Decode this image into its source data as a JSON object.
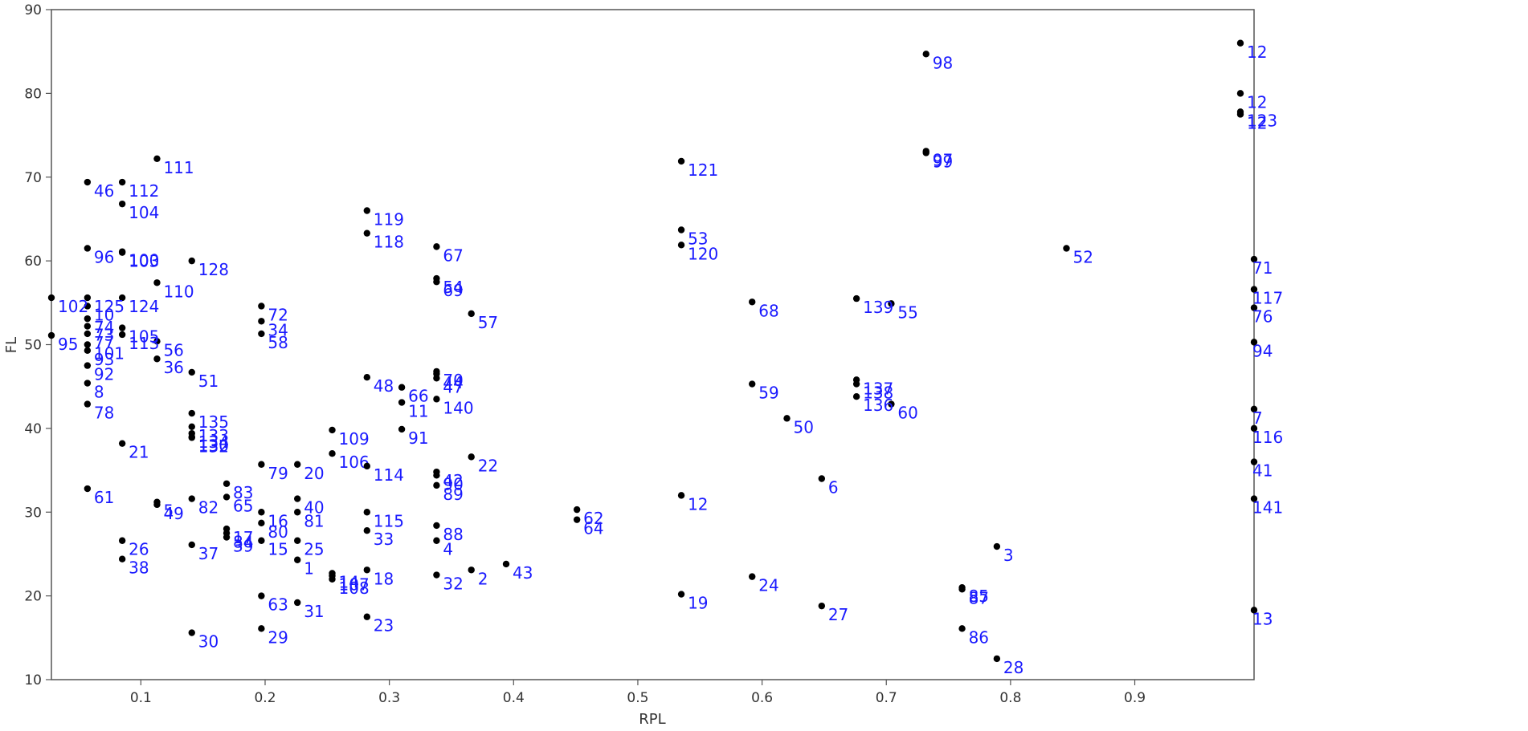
{
  "chart_data": {
    "type": "scatter",
    "xlabel": "RPL",
    "ylabel": "FL",
    "xlim": [
      0.028,
      0.996
    ],
    "ylim": [
      10,
      90
    ],
    "xticks": [
      0.1,
      0.2,
      0.3,
      0.4,
      0.5,
      0.6,
      0.7,
      0.8,
      0.9
    ],
    "yticks": [
      10,
      20,
      30,
      40,
      50,
      60,
      70,
      80,
      90
    ],
    "grid": false,
    "legend": "none",
    "colors": {
      "point": "#000000",
      "label": "#1a1aff",
      "axis": "#555555"
    },
    "points": [
      {
        "label": "1",
        "x": 0.226,
        "y": 24.3
      },
      {
        "label": "2",
        "x": 0.366,
        "y": 23.1
      },
      {
        "label": "3",
        "x": 0.789,
        "y": 25.9
      },
      {
        "label": "4",
        "x": 0.338,
        "y": 26.6
      },
      {
        "label": "5",
        "x": 0.113,
        "y": 31.2
      },
      {
        "label": "6",
        "x": 0.648,
        "y": 34.0
      },
      {
        "label": "7",
        "x": 0.996,
        "y": 42.3
      },
      {
        "label": "8",
        "x": 0.057,
        "y": 45.4
      },
      {
        "label": "10",
        "x": 0.057,
        "y": 54.6
      },
      {
        "label": "11",
        "x": 0.31,
        "y": 43.1
      },
      {
        "label": "12",
        "x": 0.535,
        "y": 32.0
      },
      {
        "label": "13",
        "x": 0.996,
        "y": 18.3
      },
      {
        "label": "14",
        "x": 0.254,
        "y": 22.7
      },
      {
        "label": "15",
        "x": 0.197,
        "y": 26.6
      },
      {
        "label": "16",
        "x": 0.197,
        "y": 30.0
      },
      {
        "label": "17",
        "x": 0.169,
        "y": 28.0
      },
      {
        "label": "18",
        "x": 0.282,
        "y": 23.1
      },
      {
        "label": "19",
        "x": 0.535,
        "y": 20.2
      },
      {
        "label": "20",
        "x": 0.226,
        "y": 35.7
      },
      {
        "label": "21",
        "x": 0.085,
        "y": 38.2
      },
      {
        "label": "22",
        "x": 0.366,
        "y": 36.6
      },
      {
        "label": "23",
        "x": 0.282,
        "y": 17.5
      },
      {
        "label": "24",
        "x": 0.592,
        "y": 22.3
      },
      {
        "label": "25",
        "x": 0.226,
        "y": 26.6
      },
      {
        "label": "26",
        "x": 0.085,
        "y": 26.6
      },
      {
        "label": "27",
        "x": 0.648,
        "y": 18.8
      },
      {
        "label": "28",
        "x": 0.789,
        "y": 12.5
      },
      {
        "label": "29",
        "x": 0.197,
        "y": 16.1
      },
      {
        "label": "30",
        "x": 0.141,
        "y": 15.6
      },
      {
        "label": "31",
        "x": 0.226,
        "y": 19.2
      },
      {
        "label": "32",
        "x": 0.338,
        "y": 22.5
      },
      {
        "label": "33",
        "x": 0.282,
        "y": 27.8
      },
      {
        "label": "34",
        "x": 0.197,
        "y": 52.8
      },
      {
        "label": "36",
        "x": 0.113,
        "y": 48.3
      },
      {
        "label": "37",
        "x": 0.141,
        "y": 26.1
      },
      {
        "label": "38",
        "x": 0.085,
        "y": 24.4
      },
      {
        "label": "39",
        "x": 0.169,
        "y": 27.0
      },
      {
        "label": "40",
        "x": 0.226,
        "y": 31.6
      },
      {
        "label": "41",
        "x": 0.996,
        "y": 36.0
      },
      {
        "label": "42",
        "x": 0.338,
        "y": 34.8
      },
      {
        "label": "43",
        "x": 0.394,
        "y": 23.8
      },
      {
        "label": "44",
        "x": 0.338,
        "y": 46.5
      },
      {
        "label": "46",
        "x": 0.057,
        "y": 69.4
      },
      {
        "label": "47",
        "x": 0.338,
        "y": 46.0
      },
      {
        "label": "48",
        "x": 0.282,
        "y": 46.1
      },
      {
        "label": "49",
        "x": 0.113,
        "y": 30.9
      },
      {
        "label": "50",
        "x": 0.62,
        "y": 41.2
      },
      {
        "label": "51",
        "x": 0.141,
        "y": 46.7
      },
      {
        "label": "52",
        "x": 0.845,
        "y": 61.5
      },
      {
        "label": "53",
        "x": 0.535,
        "y": 63.7
      },
      {
        "label": "54",
        "x": 0.338,
        "y": 57.9
      },
      {
        "label": "55",
        "x": 0.704,
        "y": 54.9
      },
      {
        "label": "56",
        "x": 0.113,
        "y": 50.4
      },
      {
        "label": "57",
        "x": 0.366,
        "y": 53.7
      },
      {
        "label": "58",
        "x": 0.197,
        "y": 51.3
      },
      {
        "label": "59",
        "x": 0.592,
        "y": 45.3
      },
      {
        "label": "60",
        "x": 0.704,
        "y": 42.9
      },
      {
        "label": "61",
        "x": 0.057,
        "y": 32.8
      },
      {
        "label": "62",
        "x": 0.451,
        "y": 30.3
      },
      {
        "label": "63",
        "x": 0.197,
        "y": 20.0
      },
      {
        "label": "64",
        "x": 0.451,
        "y": 29.1
      },
      {
        "label": "65",
        "x": 0.169,
        "y": 31.8
      },
      {
        "label": "66",
        "x": 0.31,
        "y": 44.9
      },
      {
        "label": "67",
        "x": 0.338,
        "y": 61.7
      },
      {
        "label": "68",
        "x": 0.592,
        "y": 55.1
      },
      {
        "label": "69",
        "x": 0.338,
        "y": 57.5
      },
      {
        "label": "70",
        "x": 0.338,
        "y": 46.8
      },
      {
        "label": "71",
        "x": 0.996,
        "y": 60.2
      },
      {
        "label": "72",
        "x": 0.197,
        "y": 54.6
      },
      {
        "label": "73",
        "x": 0.057,
        "y": 52.2
      },
      {
        "label": "74",
        "x": 0.057,
        "y": 53.1
      },
      {
        "label": "76",
        "x": 0.996,
        "y": 54.4
      },
      {
        "label": "77",
        "x": 0.057,
        "y": 51.3
      },
      {
        "label": "78",
        "x": 0.057,
        "y": 42.9
      },
      {
        "label": "79",
        "x": 0.197,
        "y": 35.7
      },
      {
        "label": "80",
        "x": 0.197,
        "y": 28.7
      },
      {
        "label": "81",
        "x": 0.226,
        "y": 30.0
      },
      {
        "label": "82",
        "x": 0.141,
        "y": 31.6
      },
      {
        "label": "83",
        "x": 0.169,
        "y": 33.4
      },
      {
        "label": "84",
        "x": 0.169,
        "y": 27.5
      },
      {
        "label": "85",
        "x": 0.761,
        "y": 21.0
      },
      {
        "label": "86",
        "x": 0.761,
        "y": 16.1
      },
      {
        "label": "87",
        "x": 0.761,
        "y": 20.8
      },
      {
        "label": "88",
        "x": 0.338,
        "y": 28.4
      },
      {
        "label": "89",
        "x": 0.338,
        "y": 33.2
      },
      {
        "label": "90",
        "x": 0.338,
        "y": 34.4
      },
      {
        "label": "91",
        "x": 0.31,
        "y": 39.9
      },
      {
        "label": "92",
        "x": 0.057,
        "y": 47.5
      },
      {
        "label": "93",
        "x": 0.057,
        "y": 49.3
      },
      {
        "label": "94",
        "x": 0.996,
        "y": 50.3
      },
      {
        "label": "95",
        "x": 0.028,
        "y": 51.1
      },
      {
        "label": "96",
        "x": 0.057,
        "y": 61.5
      },
      {
        "label": "97",
        "x": 0.732,
        "y": 73.1
      },
      {
        "label": "98",
        "x": 0.732,
        "y": 84.7
      },
      {
        "label": "99",
        "x": 0.732,
        "y": 72.9
      },
      {
        "label": "100",
        "x": 0.085,
        "y": 61.1
      },
      {
        "label": "101",
        "x": 0.057,
        "y": 50.0
      },
      {
        "label": "102",
        "x": 0.028,
        "y": 55.6
      },
      {
        "label": "103",
        "x": 0.085,
        "y": 61.0
      },
      {
        "label": "104",
        "x": 0.085,
        "y": 66.8
      },
      {
        "label": "105",
        "x": 0.085,
        "y": 52.0
      },
      {
        "label": "106",
        "x": 0.254,
        "y": 37.0
      },
      {
        "label": "107",
        "x": 0.254,
        "y": 22.4
      },
      {
        "label": "108",
        "x": 0.254,
        "y": 22.0
      },
      {
        "label": "109",
        "x": 0.254,
        "y": 39.8
      },
      {
        "label": "110",
        "x": 0.113,
        "y": 57.4
      },
      {
        "label": "111",
        "x": 0.113,
        "y": 72.2
      },
      {
        "label": "112",
        "x": 0.085,
        "y": 69.4
      },
      {
        "label": "113",
        "x": 0.085,
        "y": 51.2
      },
      {
        "label": "114",
        "x": 0.282,
        "y": 35.5
      },
      {
        "label": "115",
        "x": 0.282,
        "y": 30.0
      },
      {
        "label": "116",
        "x": 0.996,
        "y": 40.0
      },
      {
        "label": "117",
        "x": 0.996,
        "y": 56.6
      },
      {
        "label": "118",
        "x": 0.282,
        "y": 63.3
      },
      {
        "label": "119",
        "x": 0.282,
        "y": 66.0
      },
      {
        "label": "120",
        "x": 0.535,
        "y": 61.9
      },
      {
        "label": "121",
        "x": 0.535,
        "y": 71.9
      },
      {
        "label": "12",
        "x": 0.985,
        "y": 86.0
      },
      {
        "label": "12",
        "x": 0.985,
        "y": 80.0
      },
      {
        "label": "123",
        "x": 0.985,
        "y": 77.8
      },
      {
        "label": "12",
        "x": 0.985,
        "y": 77.5
      },
      {
        "label": "124",
        "x": 0.085,
        "y": 55.6
      },
      {
        "label": "125",
        "x": 0.057,
        "y": 55.6
      },
      {
        "label": "128",
        "x": 0.141,
        "y": 60.0
      },
      {
        "label": "133",
        "x": 0.141,
        "y": 40.2
      },
      {
        "label": "134",
        "x": 0.141,
        "y": 39.4
      },
      {
        "label": "135",
        "x": 0.141,
        "y": 41.8
      },
      {
        "label": "136",
        "x": 0.676,
        "y": 43.8
      },
      {
        "label": "137",
        "x": 0.676,
        "y": 45.8
      },
      {
        "label": "138",
        "x": 0.676,
        "y": 45.3
      },
      {
        "label": "139",
        "x": 0.676,
        "y": 55.5
      },
      {
        "label": "140",
        "x": 0.338,
        "y": 43.5
      },
      {
        "label": "141",
        "x": 0.996,
        "y": 31.6
      },
      {
        "label": "130",
        "x": 0.141,
        "y": 39.0
      },
      {
        "label": "132",
        "x": 0.141,
        "y": 38.9
      }
    ]
  }
}
